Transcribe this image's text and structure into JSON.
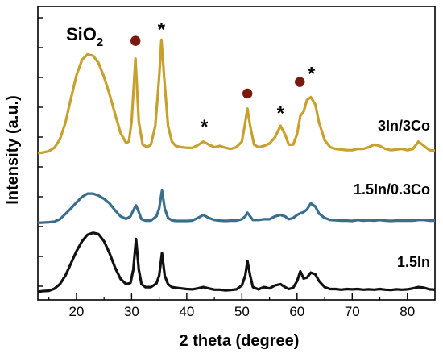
{
  "chart_data": {
    "type": "line",
    "xlabel": "2 theta (degree)",
    "ylabel": "Intensity (a.u.)",
    "xlim": [
      13,
      85
    ],
    "x_ticks": [
      20,
      30,
      40,
      50,
      60,
      70,
      80
    ],
    "y_tick_labels_shown": false,
    "grid": false,
    "annotation_text": "SiO",
    "annotation_subscript": "2",
    "markers": {
      "circle_color": "#7a1a0f",
      "star_symbol": "*"
    },
    "series": [
      {
        "name": "1.5In",
        "color": "#111111",
        "offset": 0,
        "points": [
          [
            13,
            0.3
          ],
          [
            14,
            0.5
          ],
          [
            15,
            0.6
          ],
          [
            16,
            1.2
          ],
          [
            17,
            2.6
          ],
          [
            18,
            5.2
          ],
          [
            19,
            8.9
          ],
          [
            20,
            12.6
          ],
          [
            21,
            15.6
          ],
          [
            22,
            17.6
          ],
          [
            23,
            18.2
          ],
          [
            24,
            17.8
          ],
          [
            25,
            15.6
          ],
          [
            26,
            12.0
          ],
          [
            27,
            7.6
          ],
          [
            28,
            4.2
          ],
          [
            29,
            2.6
          ],
          [
            29.8,
            3.0
          ],
          [
            30.3,
            7.0
          ],
          [
            30.8,
            16.3
          ],
          [
            31.3,
            7.0
          ],
          [
            31.8,
            2.6
          ],
          [
            32.5,
            1.7
          ],
          [
            33.5,
            1.7
          ],
          [
            34.5,
            2.8
          ],
          [
            35.0,
            5.2
          ],
          [
            35.5,
            12.0
          ],
          [
            36.0,
            5.2
          ],
          [
            36.6,
            2.6
          ],
          [
            37.3,
            1.7
          ],
          [
            38,
            1.5
          ],
          [
            39,
            1.3
          ],
          [
            40,
            1.1
          ],
          [
            41,
            1.0
          ],
          [
            42,
            1.3
          ],
          [
            43,
            1.7
          ],
          [
            44,
            1.3
          ],
          [
            45,
            0.9
          ],
          [
            46,
            0.9
          ],
          [
            47,
            0.7
          ],
          [
            48,
            0.8
          ],
          [
            49,
            1.0
          ],
          [
            50,
            2.2
          ],
          [
            50.6,
            5.2
          ],
          [
            51.0,
            9.6
          ],
          [
            51.5,
            5.2
          ],
          [
            52,
            1.7
          ],
          [
            53,
            1.0
          ],
          [
            54,
            1.7
          ],
          [
            55,
            1.3
          ],
          [
            56,
            2.2
          ],
          [
            57,
            2.6
          ],
          [
            57.8,
            1.7
          ],
          [
            58.5,
            1.1
          ],
          [
            59.3,
            1.5
          ],
          [
            60.0,
            3.5
          ],
          [
            60.6,
            6.5
          ],
          [
            61.2,
            4.3
          ],
          [
            61.8,
            4.6
          ],
          [
            62.5,
            6.1
          ],
          [
            63.3,
            5.6
          ],
          [
            64.0,
            3.5
          ],
          [
            65,
            1.7
          ],
          [
            66,
            1.1
          ],
          [
            67,
            1.1
          ],
          [
            68,
            0.9
          ],
          [
            69,
            1.1
          ],
          [
            70,
            1.0
          ],
          [
            71,
            1.1
          ],
          [
            72,
            0.9
          ],
          [
            73,
            1.0
          ],
          [
            74,
            0.9
          ],
          [
            75,
            1.1
          ],
          [
            76,
            0.9
          ],
          [
            77,
            0.8
          ],
          [
            78,
            1.0
          ],
          [
            79,
            0.9
          ],
          [
            80,
            1.0
          ],
          [
            81,
            1.3
          ],
          [
            82,
            1.7
          ],
          [
            83,
            1.5
          ],
          [
            84,
            1.0
          ],
          [
            85,
            0.9
          ]
        ]
      },
      {
        "name": "1.5In/0.3Co",
        "color": "#3a6f8c",
        "offset": 21,
        "points": [
          [
            13,
            0.2
          ],
          [
            14,
            0.3
          ],
          [
            15,
            0.4
          ],
          [
            16,
            0.6
          ],
          [
            17,
            1.3
          ],
          [
            18,
            2.9
          ],
          [
            19,
            4.6
          ],
          [
            20,
            6.4
          ],
          [
            21,
            8.1
          ],
          [
            22,
            9.1
          ],
          [
            23,
            9.1
          ],
          [
            24,
            8.5
          ],
          [
            25,
            7.5
          ],
          [
            26,
            6.1
          ],
          [
            27,
            4.0
          ],
          [
            28,
            2.2
          ],
          [
            29,
            1.4
          ],
          [
            29.8,
            2.2
          ],
          [
            30.3,
            4.0
          ],
          [
            30.8,
            5.5
          ],
          [
            31.3,
            3.5
          ],
          [
            31.8,
            1.3
          ],
          [
            32.5,
            0.9
          ],
          [
            33.5,
            0.9
          ],
          [
            34.5,
            2.2
          ],
          [
            35.0,
            4.6
          ],
          [
            35.5,
            10.0
          ],
          [
            36.0,
            4.6
          ],
          [
            36.6,
            1.7
          ],
          [
            37.3,
            1.0
          ],
          [
            38,
            0.8
          ],
          [
            39,
            0.8
          ],
          [
            40,
            0.8
          ],
          [
            41,
            0.9
          ],
          [
            42,
            1.7
          ],
          [
            43,
            2.6
          ],
          [
            44,
            1.7
          ],
          [
            45,
            1.1
          ],
          [
            46,
            0.9
          ],
          [
            47,
            0.8
          ],
          [
            48,
            0.9
          ],
          [
            49,
            0.9
          ],
          [
            50,
            1.3
          ],
          [
            50.6,
            2.2
          ],
          [
            51.0,
            3.3
          ],
          [
            51.5,
            2.2
          ],
          [
            52,
            1.1
          ],
          [
            53,
            1.1
          ],
          [
            54,
            1.3
          ],
          [
            55,
            1.3
          ],
          [
            56,
            2.2
          ],
          [
            57,
            2.6
          ],
          [
            57.8,
            2.2
          ],
          [
            58.5,
            1.3
          ],
          [
            59.3,
            1.7
          ],
          [
            60.0,
            2.6
          ],
          [
            60.6,
            3.1
          ],
          [
            61.2,
            3.5
          ],
          [
            61.8,
            4.3
          ],
          [
            62.5,
            6.1
          ],
          [
            63.3,
            5.2
          ],
          [
            64.0,
            3.0
          ],
          [
            65,
            1.7
          ],
          [
            66,
            1.1
          ],
          [
            67,
            1.0
          ],
          [
            68,
            0.9
          ],
          [
            69,
            0.9
          ],
          [
            70,
            0.8
          ],
          [
            71,
            1.1
          ],
          [
            72,
            0.9
          ],
          [
            73,
            1.0
          ],
          [
            74,
            0.9
          ],
          [
            75,
            1.1
          ],
          [
            76,
            0.9
          ],
          [
            77,
            0.8
          ],
          [
            78,
            0.9
          ],
          [
            79,
            0.9
          ],
          [
            80,
            0.9
          ],
          [
            81,
            0.9
          ],
          [
            82,
            1.1
          ],
          [
            83,
            1.1
          ],
          [
            84,
            0.9
          ],
          [
            85,
            0.9
          ]
        ]
      },
      {
        "name": "3In/3Co",
        "color": "#c8a02d",
        "offset": 42,
        "points": [
          [
            13,
            0.4
          ],
          [
            14,
            0.6
          ],
          [
            15,
            1.0
          ],
          [
            16,
            2.0
          ],
          [
            17,
            4.6
          ],
          [
            18,
            9.6
          ],
          [
            19,
            17.0
          ],
          [
            20,
            24.0
          ],
          [
            21,
            28.7
          ],
          [
            22,
            30.4
          ],
          [
            23,
            30.0
          ],
          [
            24,
            27.8
          ],
          [
            25,
            23.5
          ],
          [
            26,
            18.3
          ],
          [
            27,
            12.2
          ],
          [
            28,
            6.5
          ],
          [
            29,
            3.5
          ],
          [
            29.5,
            3.9
          ],
          [
            30.0,
            10.0
          ],
          [
            30.7,
            29.1
          ],
          [
            31.3,
            10.0
          ],
          [
            32.0,
            3.0
          ],
          [
            32.8,
            2.2
          ],
          [
            33.5,
            3.0
          ],
          [
            34.3,
            8.7
          ],
          [
            35.0,
            23.5
          ],
          [
            35.4,
            34.8
          ],
          [
            35.9,
            23.5
          ],
          [
            36.6,
            8.7
          ],
          [
            37.3,
            3.9
          ],
          [
            38,
            2.6
          ],
          [
            39,
            2.2
          ],
          [
            40,
            2.0
          ],
          [
            41,
            2.0
          ],
          [
            42,
            2.8
          ],
          [
            43,
            3.9
          ],
          [
            44,
            3.0
          ],
          [
            45,
            2.2
          ],
          [
            46,
            2.6
          ],
          [
            47,
            2.0
          ],
          [
            48,
            1.7
          ],
          [
            49,
            2.2
          ],
          [
            50,
            3.9
          ],
          [
            50.5,
            8.7
          ],
          [
            51.0,
            13.9
          ],
          [
            51.5,
            8.7
          ],
          [
            52.2,
            3.0
          ],
          [
            53,
            2.2
          ],
          [
            54,
            2.6
          ],
          [
            55,
            3.3
          ],
          [
            56,
            5.2
          ],
          [
            57,
            8.7
          ],
          [
            57.8,
            6.1
          ],
          [
            58.5,
            3.0
          ],
          [
            59.3,
            3.0
          ],
          [
            60.0,
            6.1
          ],
          [
            60.6,
            11.7
          ],
          [
            61.2,
            13.0
          ],
          [
            61.8,
            16.5
          ],
          [
            62.5,
            17.4
          ],
          [
            63.3,
            15.2
          ],
          [
            64.0,
            9.6
          ],
          [
            65,
            4.3
          ],
          [
            66,
            2.2
          ],
          [
            67,
            1.7
          ],
          [
            68,
            1.5
          ],
          [
            69,
            1.3
          ],
          [
            70,
            1.3
          ],
          [
            71,
            1.7
          ],
          [
            72,
            1.7
          ],
          [
            73,
            2.2
          ],
          [
            74,
            3.0
          ],
          [
            75,
            2.6
          ],
          [
            76,
            1.7
          ],
          [
            77,
            1.3
          ],
          [
            78,
            1.5
          ],
          [
            79,
            1.7
          ],
          [
            80,
            1.3
          ],
          [
            81,
            1.7
          ],
          [
            82,
            3.9
          ],
          [
            83,
            2.6
          ],
          [
            84,
            1.3
          ],
          [
            85,
            1.1
          ]
        ]
      }
    ],
    "peak_markers": [
      {
        "x": 30.7,
        "y": 76.5,
        "kind": "circle"
      },
      {
        "x": 35.4,
        "y": 80.5,
        "kind": "star"
      },
      {
        "x": 43.2,
        "y": 51.0,
        "kind": "star"
      },
      {
        "x": 51.0,
        "y": 60.5,
        "kind": "circle"
      },
      {
        "x": 57.0,
        "y": 55.0,
        "kind": "star"
      },
      {
        "x": 60.5,
        "y": 64.0,
        "kind": "circle"
      },
      {
        "x": 62.6,
        "y": 67.0,
        "kind": "star"
      }
    ]
  }
}
